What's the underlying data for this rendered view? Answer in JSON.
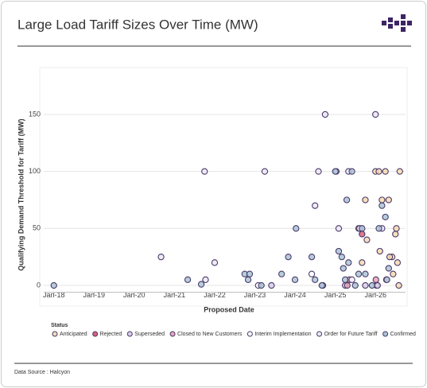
{
  "chart_data": {
    "type": "scatter",
    "title": "Large Load Tariff Sizes Over Time (MW)",
    "x_label": "Proposed Date",
    "y_label": "Qualifying Demand Threshold for Tariff (MW)",
    "legend_title": "Status",
    "source": "Data Source : Halcyon",
    "xlim": [
      "2017-10-01",
      "2026-10-01"
    ],
    "xticks": [
      {
        "value": "2018-01-01",
        "label": "Jan-18"
      },
      {
        "value": "2019-01-01",
        "label": "Jan-19"
      },
      {
        "value": "2020-01-01",
        "label": "Jan-20"
      },
      {
        "value": "2021-01-01",
        "label": "Jan-21"
      },
      {
        "value": "2022-01-01",
        "label": "Jan-22"
      },
      {
        "value": "2023-01-01",
        "label": "Jan-23"
      },
      {
        "value": "2024-01-01",
        "label": "Jan-24"
      },
      {
        "value": "2025-01-01",
        "label": "Jan-25"
      },
      {
        "value": "2026-01-01",
        "label": "Jan-26"
      }
    ],
    "ylim": [
      -6,
      166
    ],
    "yticks": [
      0,
      50,
      100,
      150
    ],
    "grid": true,
    "series": [
      {
        "name": "Anticipated",
        "color": "#f6d9b0",
        "x": [
          "2025-08-01",
          "2025-09-01",
          "2025-10-01",
          "2025-10-15",
          "2026-01-01",
          "2026-02-01",
          "2026-03-01",
          "2026-04-01",
          "2026-05-01",
          "2026-06-01",
          "2026-07-01",
          "2026-07-10",
          "2026-06-10",
          "2026-08-01",
          "2026-07-20",
          "2026-02-10",
          "2026-05-10",
          "2026-08-10",
          "2026-04-10",
          "2026-01-10"
        ],
        "values": [
          50,
          20,
          75,
          40,
          100,
          100,
          75,
          100,
          75,
          25,
          45,
          50,
          10,
          0,
          20,
          30,
          25,
          100,
          5,
          0
        ]
      },
      {
        "name": "Rejected",
        "color": "#d9607a",
        "x": [
          "2025-09-01"
        ],
        "values": [
          45
        ]
      },
      {
        "name": "Superseded",
        "color": "#d8cce8",
        "x": [
          "2023-06-01",
          "2024-09-10",
          "2025-04-01",
          "2025-10-01",
          "2026-01-20"
        ],
        "values": [
          0,
          0,
          0,
          0,
          0
        ]
      },
      {
        "name": "Closed to New Customers",
        "color": "#e9a3b4",
        "x": [
          "2025-04-20",
          "2025-05-10",
          "2026-01-05"
        ],
        "values": [
          0,
          5,
          5
        ]
      },
      {
        "name": "Interim Implementation",
        "color": "#ffffff",
        "x": [
          "2023-02-01",
          "2024-06-01",
          "2025-06-01"
        ],
        "values": [
          0,
          10,
          5
        ]
      },
      {
        "name": "Order for Future Tariff",
        "color": "#ece6f4",
        "x": [
          "2021-10-01",
          "2020-09-01",
          "2022-01-01",
          "2021-10-10",
          "2023-04-01",
          "2024-10-01",
          "2024-07-01",
          "2024-08-01",
          "2025-01-10",
          "2025-02-01",
          "2025-05-01",
          "2025-08-10",
          "2026-01-01",
          "2026-03-01"
        ],
        "values": [
          100,
          25,
          20,
          5,
          100,
          150,
          70,
          100,
          100,
          50,
          100,
          50,
          150,
          50
        ]
      },
      {
        "name": "Confirmed",
        "color": "#a9c4d6",
        "x": [
          "2018-01-01",
          "2021-05-01",
          "2021-09-01",
          "2022-10-01",
          "2022-11-01",
          "2022-11-15",
          "2023-03-01",
          "2023-09-01",
          "2023-11-01",
          "2024-01-01",
          "2024-01-10",
          "2024-06-01",
          "2024-07-01",
          "2024-09-01",
          "2025-01-01",
          "2025-02-01",
          "2025-03-01",
          "2025-03-15",
          "2025-04-01",
          "2025-04-15",
          "2025-05-01",
          "2025-06-01",
          "2025-07-01",
          "2025-08-01",
          "2025-09-01",
          "2025-10-01",
          "2025-12-01",
          "2026-02-01",
          "2026-03-01",
          "2026-04-01",
          "2026-05-01",
          "2026-04-15"
        ],
        "values": [
          0,
          5,
          1,
          10,
          5,
          10,
          0,
          10,
          25,
          5,
          50,
          25,
          5,
          0,
          100,
          30,
          25,
          15,
          5,
          75,
          20,
          100,
          0,
          10,
          50,
          10,
          0,
          50,
          70,
          60,
          15,
          5
        ]
      }
    ]
  }
}
